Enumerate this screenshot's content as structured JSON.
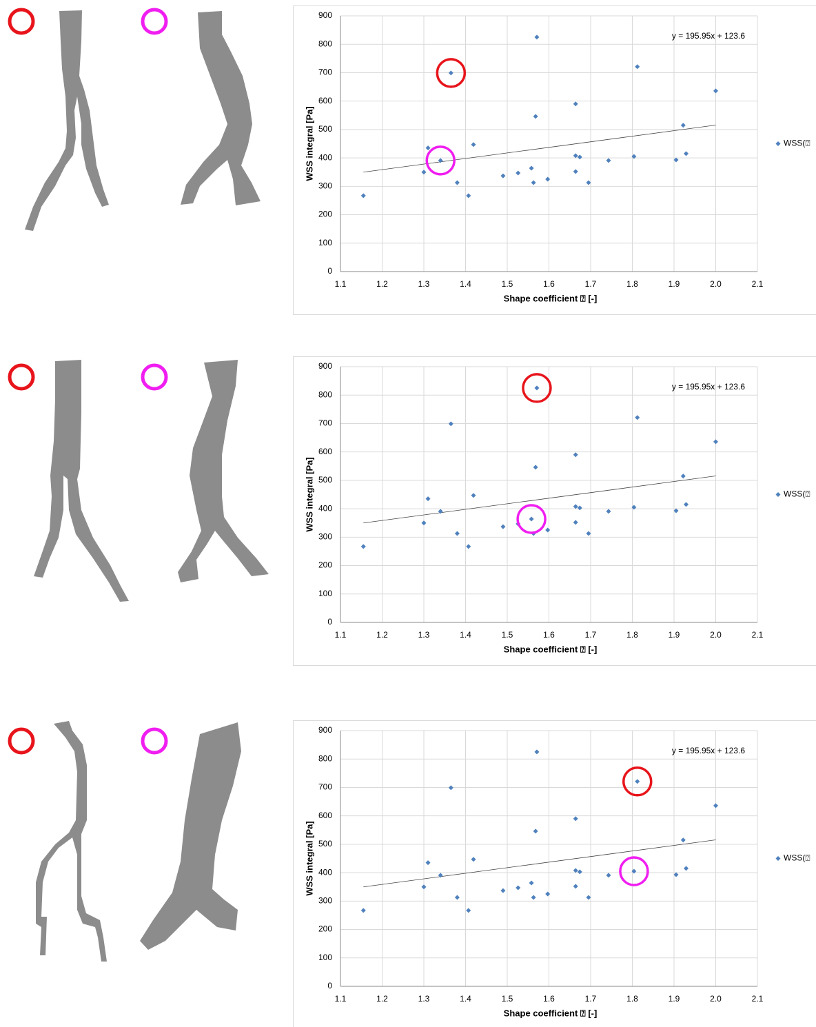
{
  "chart_data": [
    {
      "type": "scatter",
      "x_label": "Shape coefficient ⍰  [-]",
      "y_label": "WSS integral [Pa]",
      "annotation": "y = 195.95x + 123.6",
      "trendline": {
        "slope": 195.95,
        "intercept": 123.6
      },
      "x": [
        1.155,
        1.3,
        1.31,
        1.34,
        1.365,
        1.38,
        1.407,
        1.419,
        1.49,
        1.526,
        1.558,
        1.563,
        1.568,
        1.571,
        1.597,
        1.664,
        1.664,
        1.664,
        1.674,
        1.695,
        1.743,
        1.804,
        1.812,
        1.905,
        1.922,
        1.929,
        2.0
      ],
      "series": [
        {
          "name": "WSS(⍰",
          "color": "#4f81bd",
          "values": [
            267,
            350,
            435,
            391,
            699,
            313,
            267,
            447,
            337,
            347,
            364,
            313,
            546,
            825,
            325,
            590,
            408,
            352,
            403,
            313,
            391,
            405,
            721,
            393,
            515,
            415,
            636
          ]
        }
      ],
      "xlim": [
        1.1,
        2.1
      ],
      "xticks": [
        1.1,
        1.2,
        1.3,
        1.4,
        1.5,
        1.6,
        1.7,
        1.8,
        1.9,
        {
          "value": 2,
          "label": "2.0"
        },
        2.1
      ],
      "ylim": [
        0,
        900
      ],
      "yticks": [
        0,
        100,
        200,
        300,
        400,
        500,
        600,
        700,
        800,
        900
      ],
      "grid": true,
      "legend": "right",
      "highlights": [
        {
          "color": "#e8141b",
          "point": 4
        },
        {
          "color": "#f01ef0",
          "point": 3
        }
      ]
    },
    {
      "type": "scatter",
      "x_label": "Shape coefficient ⍰  [-]",
      "y_label": "WSS integral [Pa]",
      "annotation": "y = 195.95x + 123.6",
      "trendline": {
        "slope": 195.95,
        "intercept": 123.6
      },
      "x": [
        1.155,
        1.3,
        1.31,
        1.34,
        1.365,
        1.38,
        1.407,
        1.419,
        1.49,
        1.526,
        1.558,
        1.563,
        1.568,
        1.571,
        1.597,
        1.664,
        1.664,
        1.664,
        1.674,
        1.695,
        1.743,
        1.804,
        1.812,
        1.905,
        1.922,
        1.929,
        2.0
      ],
      "series": [
        {
          "name": "WSS(⍰",
          "color": "#4f81bd",
          "values": [
            267,
            350,
            435,
            391,
            699,
            313,
            267,
            447,
            337,
            347,
            364,
            313,
            546,
            825,
            325,
            590,
            408,
            352,
            403,
            313,
            391,
            405,
            721,
            393,
            515,
            415,
            636
          ]
        }
      ],
      "xlim": [
        1.1,
        2.1
      ],
      "xticks": [
        1.1,
        1.2,
        1.3,
        1.4,
        1.5,
        1.6,
        1.7,
        1.8,
        1.9,
        {
          "value": 2,
          "label": "2.0"
        },
        2.1
      ],
      "ylim": [
        0,
        900
      ],
      "yticks": [
        0,
        100,
        200,
        300,
        400,
        500,
        600,
        700,
        800,
        900
      ],
      "grid": true,
      "legend": "right",
      "highlights": [
        {
          "color": "#e8141b",
          "point": 13
        },
        {
          "color": "#f01ef0",
          "point": 10
        }
      ]
    },
    {
      "type": "scatter",
      "x_label": "Shape coefficient ⍰  [-]",
      "y_label": "WSS integral [Pa]",
      "annotation": "y = 195.95x + 123.6",
      "trendline": {
        "slope": 195.95,
        "intercept": 123.6
      },
      "x": [
        1.155,
        1.3,
        1.31,
        1.34,
        1.365,
        1.38,
        1.407,
        1.419,
        1.49,
        1.526,
        1.558,
        1.563,
        1.568,
        1.571,
        1.597,
        1.664,
        1.664,
        1.664,
        1.674,
        1.695,
        1.743,
        1.804,
        1.812,
        1.905,
        1.922,
        1.929,
        2.0
      ],
      "series": [
        {
          "name": "WSS(⍰",
          "color": "#4f81bd",
          "values": [
            267,
            350,
            435,
            391,
            699,
            313,
            267,
            447,
            337,
            347,
            364,
            313,
            546,
            825,
            325,
            590,
            408,
            352,
            403,
            313,
            391,
            405,
            721,
            393,
            515,
            415,
            636
          ]
        }
      ],
      "xlim": [
        1.1,
        2.1
      ],
      "xticks": [
        1.1,
        1.2,
        1.3,
        1.4,
        1.5,
        1.6,
        1.7,
        1.8,
        1.9,
        {
          "value": 2,
          "label": "2.0"
        },
        2.1
      ],
      "ylim": [
        0,
        900
      ],
      "yticks": [
        0,
        100,
        200,
        300,
        400,
        500,
        600,
        700,
        800,
        900
      ],
      "grid": true,
      "legend": "right",
      "highlights": [
        {
          "color": "#e8141b",
          "point": 22
        },
        {
          "color": "#f01ef0",
          "point": 21
        }
      ]
    }
  ]
}
